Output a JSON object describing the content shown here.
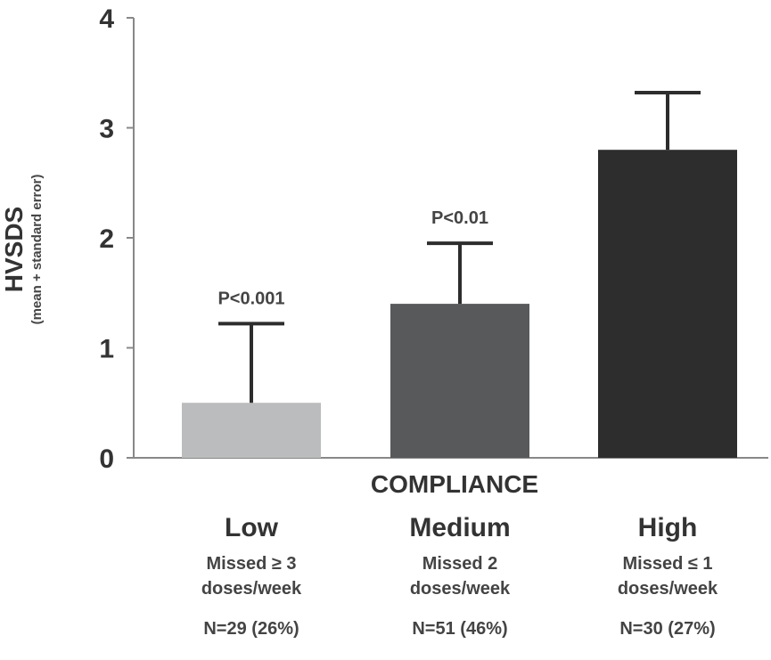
{
  "chart_data": {
    "type": "bar",
    "categories": [
      "Low",
      "Medium",
      "High"
    ],
    "values": [
      0.5,
      1.4,
      2.8
    ],
    "error_upper": [
      1.22,
      1.95,
      3.32
    ],
    "bar_colors": [
      "#bbbcbd",
      "#58595b",
      "#2e2d2e"
    ],
    "annotations": [
      "P<0.001",
      "P<0.01",
      ""
    ],
    "category_descriptions": [
      [
        "Missed ≥ 3",
        "doses/week"
      ],
      [
        "Missed 2",
        "doses/week"
      ],
      [
        "Missed ≤ 1",
        "doses/week"
      ]
    ],
    "category_counts": [
      "N=29 (26%)",
      "N=51 (46%)",
      "N=30 (27%)"
    ],
    "xlabel": "COMPLIANCE",
    "ylabel": "HVSDS",
    "ylabel_sub": "(mean + standard error)",
    "ylim": [
      0,
      4
    ],
    "yticks": [
      "0",
      "1",
      "2",
      "3",
      "4"
    ],
    "grid": false,
    "legend": "none"
  }
}
